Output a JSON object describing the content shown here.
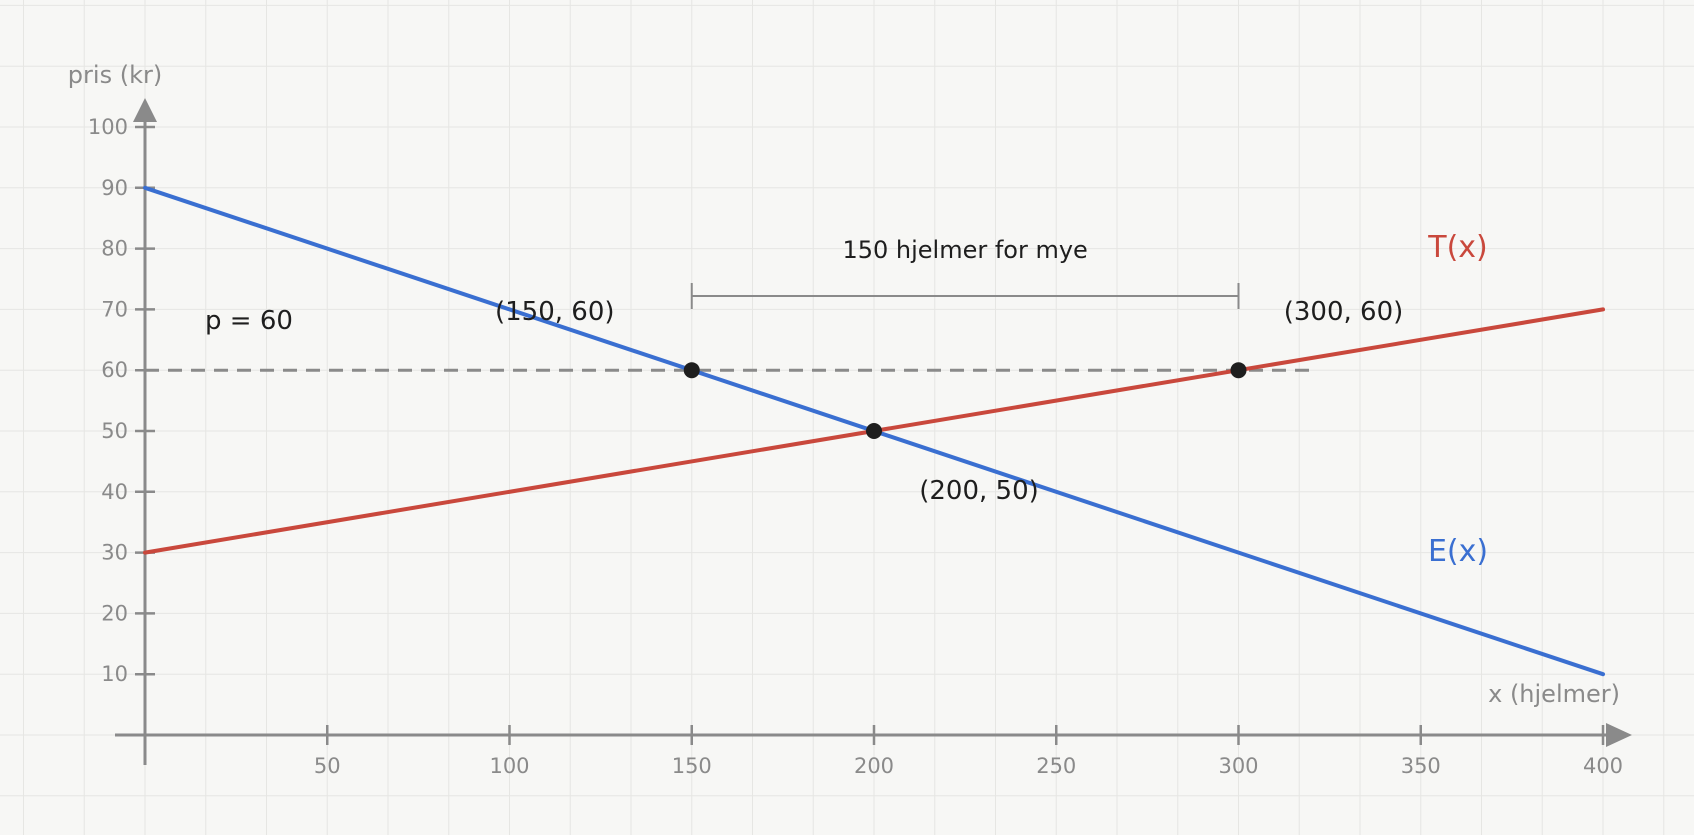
{
  "chart_data": {
    "type": "line",
    "xlabel": "x (hjelmer)",
    "ylabel": "pris (kr)",
    "xlim": [
      0,
      400
    ],
    "ylim": [
      0,
      100
    ],
    "x_ticks": [
      50,
      100,
      150,
      200,
      250,
      300,
      350,
      400
    ],
    "y_ticks": [
      10,
      20,
      30,
      40,
      50,
      60,
      70,
      80,
      90,
      100
    ],
    "grid": true,
    "series": [
      {
        "name": "E(x)",
        "color": "#3a6fd1",
        "x": [
          0,
          400
        ],
        "y": [
          90,
          10
        ]
      },
      {
        "name": "T(x)",
        "color": "#c9483c",
        "x": [
          0,
          400
        ],
        "y": [
          30,
          70
        ]
      }
    ],
    "reference_line": {
      "y": 60,
      "x_range": [
        0,
        320
      ],
      "label": "p = 60",
      "style": "dashed",
      "color": "#8a8a8a"
    },
    "points": [
      {
        "x": 150,
        "y": 60,
        "label": "(150, 60)"
      },
      {
        "x": 200,
        "y": 50,
        "label": "(200, 50)"
      },
      {
        "x": 300,
        "y": 60,
        "label": "(300, 60)"
      }
    ],
    "bracket": {
      "x_range": [
        150,
        300
      ],
      "label": "150 hjelmer for mye"
    }
  }
}
